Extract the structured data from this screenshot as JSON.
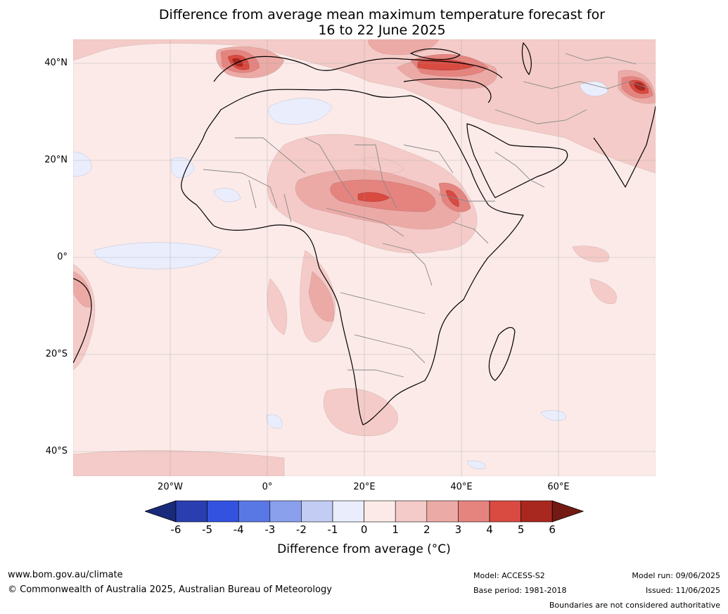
{
  "title_line1": "Difference from average mean maximum temperature forecast for",
  "title_line2": "16 to 22 June 2025",
  "lat_labels": [
    "40°N",
    "20°N",
    "0°",
    "20°S",
    "40°S"
  ],
  "lon_labels": [
    "20°W",
    "0°",
    "20°E",
    "40°E",
    "60°E"
  ],
  "colorbar": {
    "ticks": [
      "-6",
      "-5",
      "-4",
      "-3",
      "-2",
      "-1",
      "0",
      "1",
      "2",
      "3",
      "4",
      "5",
      "6"
    ],
    "colors": [
      "#1a2a7a",
      "#2a3eb0",
      "#3452e0",
      "#5a78e4",
      "#8aa0ec",
      "#c3cdf3",
      "#eaeefc",
      "#fbeae8",
      "#f4cbc8",
      "#ecaaa6",
      "#e5847f",
      "#d94a40",
      "#a8271f",
      "#741a14"
    ],
    "label": "Difference from average (°C)"
  },
  "footer": {
    "website": "www.bom.gov.au/climate",
    "copyright": "© Commonwealth of Australia 2025, Australian Bureau of Meteorology",
    "model": "Model: ACCESS-S2",
    "base_period": "Base period: 1981-2018",
    "model_run": "Model run: 09/06/2025",
    "issued": "Issued: 11/06/2025",
    "disclaimer": "Boundaries are not considered authoritative"
  }
}
